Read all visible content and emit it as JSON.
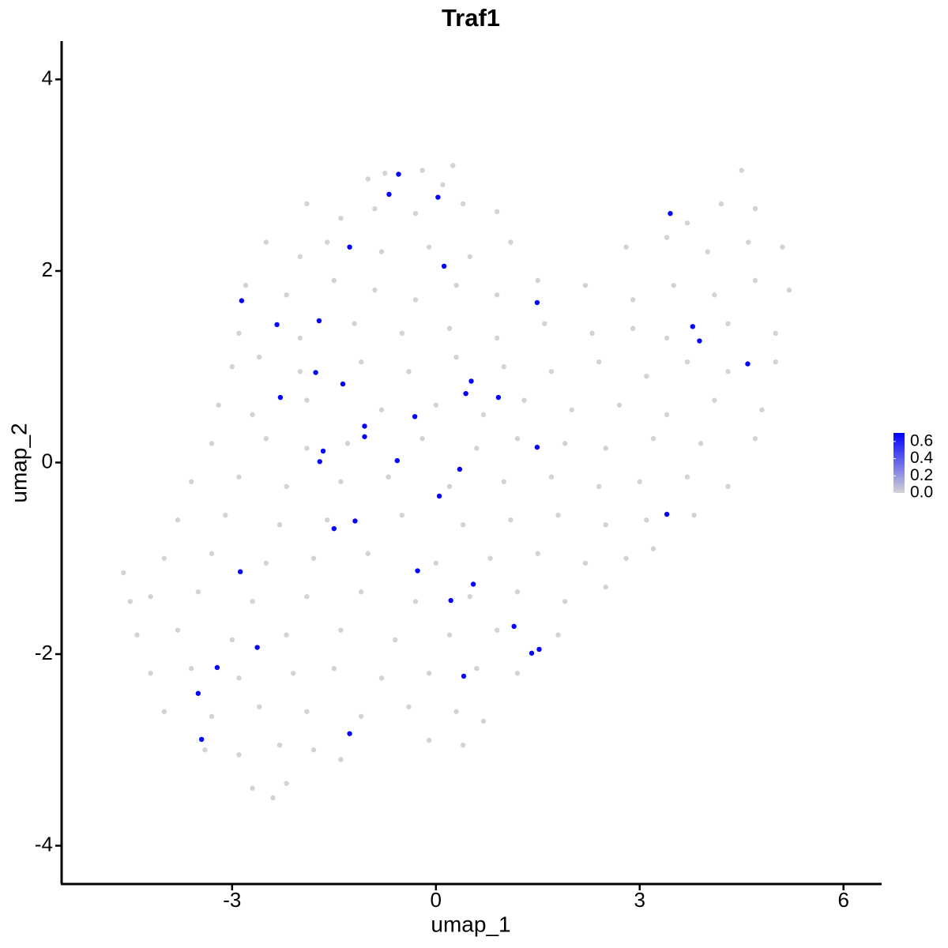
{
  "chart_data": {
    "type": "scatter",
    "title": "Traf1",
    "xlabel": "umap_1",
    "ylabel": "umap_2",
    "xlim": [
      -5.51,
      6.55
    ],
    "ylim": [
      -4.4,
      4.4
    ],
    "xticks": [
      -3,
      0,
      3,
      6
    ],
    "yticks": [
      -4,
      -2,
      0,
      2,
      4
    ],
    "colorbar": {
      "lim": [
        0,
        0.7
      ],
      "ticks": [
        {
          "value": 0,
          "label": "0.0"
        },
        0.2,
        0.4,
        0.6
      ],
      "colors": [
        "#d3d3d3",
        "#0000ff"
      ]
    },
    "x": [
      -1.0,
      -0.75,
      -0.2,
      0.25,
      4.5,
      0.1,
      -1.9,
      -1.4,
      -0.9,
      -0.3,
      0.4,
      0.9,
      3.7,
      4.2,
      4.7,
      -2.5,
      -2.0,
      -1.6,
      -0.8,
      -0.1,
      0.5,
      1.1,
      2.8,
      3.4,
      4.0,
      4.6,
      5.1,
      -2.8,
      -2.2,
      -1.5,
      -0.9,
      -0.3,
      0.3,
      0.9,
      1.5,
      2.2,
      2.9,
      3.5,
      4.1,
      4.7,
      5.2,
      -2.9,
      -2.0,
      -1.2,
      -0.5,
      0.2,
      0.9,
      1.6,
      2.3,
      2.9,
      3.4,
      4.3,
      5.0,
      -3.0,
      -2.6,
      -2.0,
      -1.1,
      -0.4,
      0.3,
      1.0,
      1.7,
      2.4,
      3.1,
      3.7,
      4.3,
      5.0,
      -3.2,
      -2.7,
      -1.9,
      -0.8,
      0.0,
      0.7,
      1.3,
      2.0,
      2.7,
      3.4,
      4.1,
      4.8,
      -3.3,
      -2.5,
      -1.9,
      -1.3,
      -0.2,
      0.6,
      1.2,
      1.9,
      2.5,
      3.2,
      3.9,
      4.7,
      -3.6,
      -2.9,
      -2.2,
      -1.4,
      -0.7,
      0.2,
      1.0,
      1.7,
      2.4,
      3.0,
      3.7,
      4.3,
      -3.8,
      -3.1,
      -2.3,
      -1.6,
      -0.5,
      0.4,
      1.1,
      1.8,
      2.5,
      3.1,
      3.8,
      -4.6,
      -4.0,
      -3.3,
      -2.5,
      -1.8,
      -1.0,
      0.0,
      0.8,
      1.5,
      2.2,
      2.8,
      3.2,
      -4.5,
      -4.2,
      -3.5,
      -2.7,
      -1.9,
      -1.1,
      -0.3,
      0.5,
      1.2,
      1.9,
      2.5,
      -4.4,
      -3.8,
      -3.0,
      -2.2,
      -1.4,
      -0.6,
      0.2,
      0.9,
      1.8,
      -4.2,
      -3.6,
      -2.9,
      -2.1,
      -1.5,
      -0.8,
      -0.1,
      0.6,
      1.2,
      -4.0,
      -3.3,
      -2.6,
      -1.9,
      -1.1,
      -0.4,
      0.3,
      0.7,
      -3.4,
      -2.9,
      -2.3,
      -1.8,
      -1.4,
      -0.1,
      0.4,
      -2.7,
      -2.4,
      -2.2,
      -0.55,
      -0.69,
      0.03,
      -1.27,
      0.12,
      -2.86,
      1.49,
      3.45,
      -2.34,
      -1.72,
      3.78,
      3.88,
      4.59,
      -1.77,
      -1.37,
      0.52,
      0.44,
      0.92,
      -2.29,
      -0.31,
      -1.05,
      -1.05,
      -1.66,
      -1.71,
      -0.57,
      1.49,
      0.35,
      0.05,
      -1.19,
      -1.5,
      3.4,
      -2.88,
      -0.27,
      0.55,
      0.22,
      1.15,
      -2.63,
      1.52,
      1.41,
      -3.22,
      0.41,
      -3.5,
      -1.27,
      -3.45
    ],
    "y": [
      2.96,
      3.02,
      3.05,
      3.1,
      3.05,
      2.9,
      2.7,
      2.55,
      2.65,
      2.6,
      2.7,
      2.62,
      2.5,
      2.7,
      2.65,
      2.3,
      2.15,
      2.3,
      2.2,
      2.25,
      2.15,
      2.3,
      2.25,
      2.35,
      2.2,
      2.3,
      2.25,
      1.85,
      1.75,
      1.9,
      1.8,
      1.7,
      1.85,
      1.75,
      1.9,
      1.85,
      1.7,
      1.85,
      1.75,
      1.9,
      1.8,
      1.35,
      1.3,
      1.45,
      1.35,
      1.4,
      1.3,
      1.45,
      1.35,
      1.4,
      1.3,
      1.45,
      1.35,
      1.0,
      1.1,
      0.95,
      1.05,
      0.95,
      1.1,
      1.0,
      0.95,
      1.05,
      0.9,
      1.05,
      0.95,
      1.05,
      0.6,
      0.5,
      0.65,
      0.55,
      0.6,
      0.5,
      0.65,
      0.55,
      0.6,
      0.5,
      0.65,
      0.55,
      0.2,
      0.25,
      0.15,
      0.2,
      0.25,
      0.15,
      0.25,
      0.2,
      0.15,
      0.25,
      0.2,
      0.25,
      -0.2,
      -0.15,
      -0.25,
      -0.2,
      -0.15,
      -0.25,
      -0.2,
      -0.15,
      -0.25,
      -0.2,
      -0.15,
      -0.25,
      -0.6,
      -0.55,
      -0.65,
      -0.6,
      -0.55,
      -0.65,
      -0.6,
      -0.55,
      -0.65,
      -0.6,
      -0.55,
      -1.15,
      -1.0,
      -0.95,
      -1.05,
      -1.0,
      -0.95,
      -1.05,
      -1.0,
      -0.95,
      -1.05,
      -1.0,
      -0.9,
      -1.45,
      -1.4,
      -1.35,
      -1.45,
      -1.4,
      -1.35,
      -1.45,
      -1.4,
      -1.35,
      -1.45,
      -1.3,
      -1.8,
      -1.75,
      -1.85,
      -1.8,
      -1.75,
      -1.85,
      -1.8,
      -1.75,
      -1.8,
      -2.2,
      -2.15,
      -2.25,
      -2.2,
      -2.15,
      -2.25,
      -2.2,
      -2.15,
      -2.2,
      -2.6,
      -2.65,
      -2.55,
      -2.6,
      -2.65,
      -2.55,
      -2.6,
      -2.7,
      -3.0,
      -3.05,
      -2.95,
      -3.0,
      -3.1,
      -2.9,
      -2.95,
      -3.4,
      -3.5,
      -3.35,
      3.01,
      2.8,
      2.77,
      2.25,
      2.05,
      1.69,
      1.67,
      2.6,
      1.44,
      1.48,
      1.42,
      1.27,
      1.03,
      0.94,
      0.82,
      0.85,
      0.72,
      0.68,
      0.68,
      0.48,
      0.38,
      0.27,
      0.12,
      0.01,
      0.02,
      0.16,
      -0.07,
      -0.35,
      -0.61,
      -0.69,
      -0.54,
      -1.14,
      -1.13,
      -1.27,
      -1.44,
      -1.71,
      -1.93,
      -1.95,
      -1.99,
      -2.14,
      -2.23,
      -2.41,
      -2.83,
      -2.89
    ],
    "values": [
      0,
      0,
      0,
      0,
      0,
      0,
      0,
      0,
      0,
      0,
      0,
      0,
      0,
      0,
      0,
      0,
      0,
      0,
      0,
      0,
      0,
      0,
      0,
      0,
      0,
      0,
      0,
      0,
      0,
      0,
      0,
      0,
      0,
      0,
      0,
      0,
      0,
      0,
      0,
      0,
      0,
      0,
      0,
      0,
      0,
      0,
      0,
      0,
      0,
      0,
      0,
      0,
      0,
      0,
      0,
      0,
      0,
      0,
      0,
      0,
      0,
      0,
      0,
      0,
      0,
      0,
      0,
      0,
      0,
      0,
      0,
      0,
      0,
      0,
      0,
      0,
      0,
      0,
      0,
      0,
      0,
      0,
      0,
      0,
      0,
      0,
      0,
      0,
      0,
      0,
      0,
      0,
      0,
      0,
      0,
      0,
      0,
      0,
      0,
      0,
      0,
      0,
      0,
      0,
      0,
      0,
      0,
      0,
      0,
      0,
      0,
      0,
      0,
      0,
      0,
      0,
      0,
      0,
      0,
      0,
      0,
      0,
      0,
      0,
      0,
      0,
      0,
      0,
      0,
      0,
      0,
      0,
      0,
      0,
      0,
      0,
      0,
      0,
      0,
      0,
      0,
      0,
      0,
      0,
      0,
      0,
      0,
      0,
      0,
      0,
      0,
      0,
      0,
      0,
      0,
      0,
      0,
      0,
      0,
      0,
      0,
      0,
      0,
      0,
      0,
      0,
      0,
      0,
      0,
      0,
      0,
      0,
      0.69,
      0.69,
      0.69,
      0.69,
      0.69,
      0.69,
      0.69,
      0.69,
      0.69,
      0.69,
      0.69,
      0.69,
      0.69,
      0.69,
      0.69,
      0.69,
      0.69,
      0.69,
      0.69,
      0.69,
      0.69,
      0.69,
      0.69,
      0.69,
      0.69,
      0.69,
      0.69,
      0.69,
      0.69,
      0.69,
      0.69,
      0.69,
      0.69,
      0.69,
      0.69,
      0.69,
      0.69,
      0.69,
      0.69,
      0.69,
      0.69,
      0.69,
      0.69,
      0.69
    ]
  }
}
